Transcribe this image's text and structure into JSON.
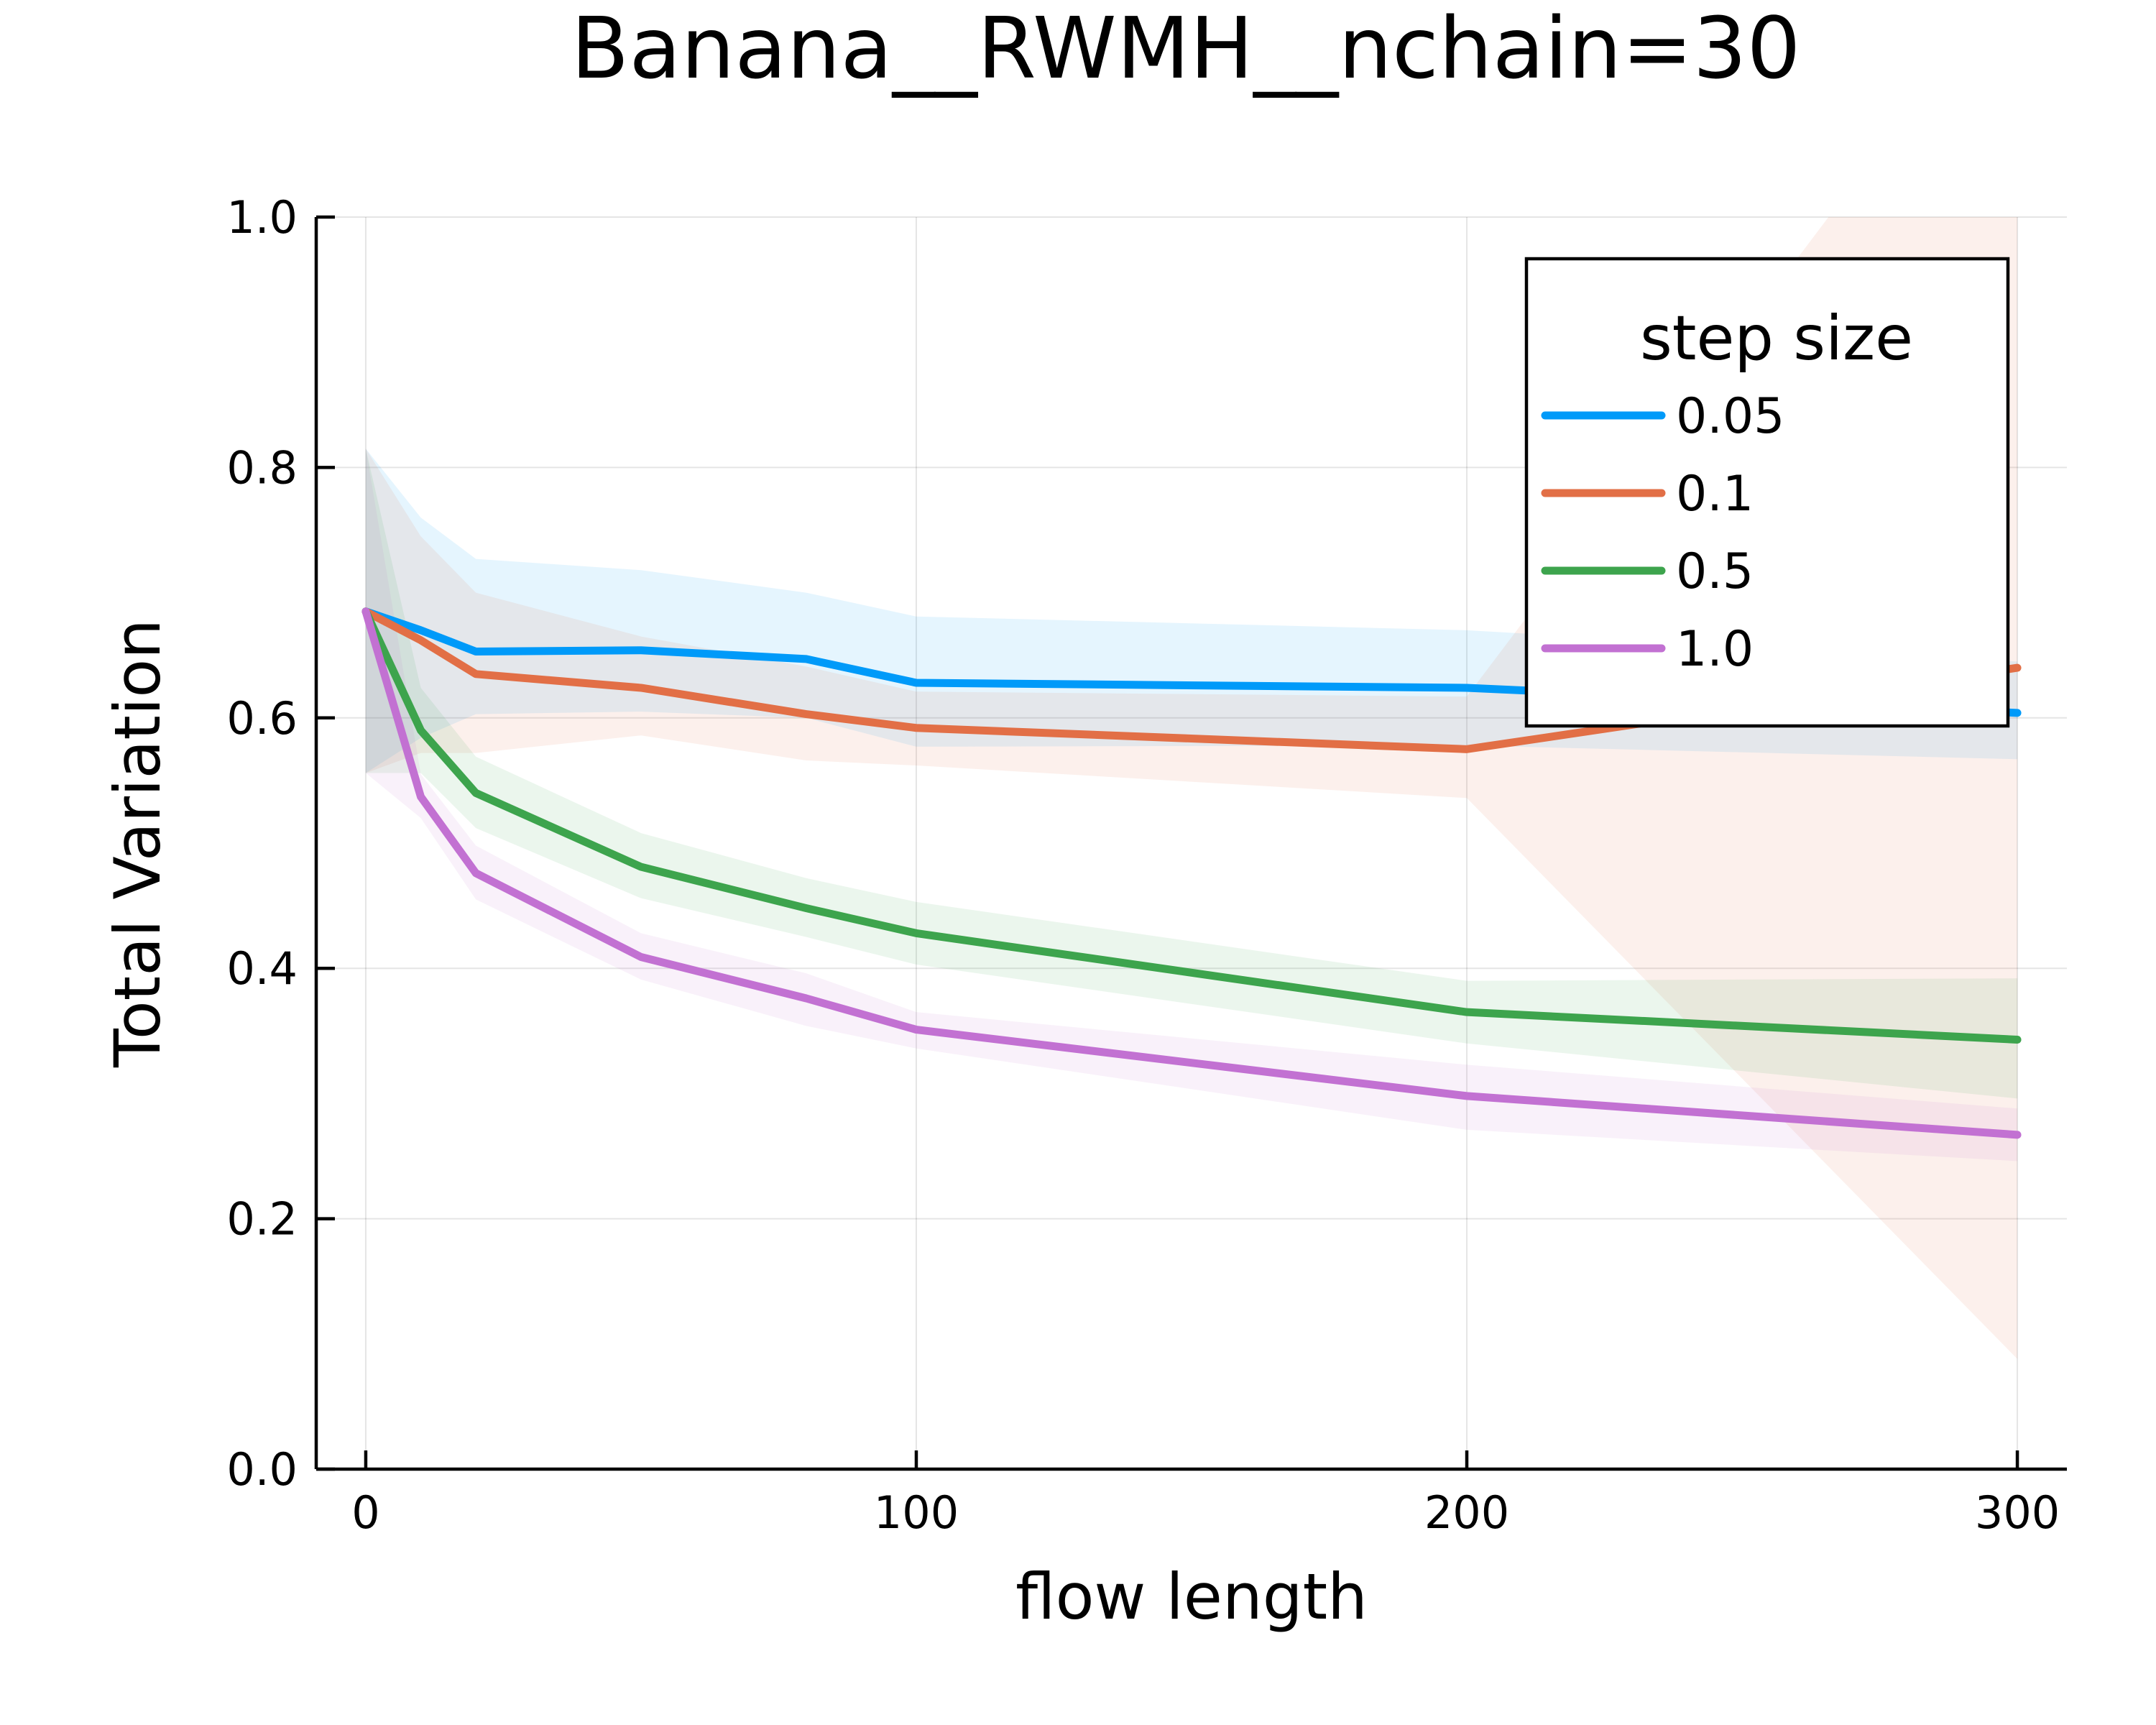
{
  "chart_data": {
    "type": "line",
    "title": "Banana__RWMH__nchain=30",
    "xlabel": "flow length",
    "ylabel": "Total Variation",
    "xlim": [
      -9,
      309
    ],
    "ylim": [
      0,
      1
    ],
    "xticks": [
      0,
      100,
      200,
      300
    ],
    "xtick_labels": [
      "0",
      "100",
      "200",
      "300"
    ],
    "yticks": [
      0,
      0.2,
      0.4,
      0.6,
      0.8,
      1.0
    ],
    "ytick_labels": [
      "0.0",
      "0.2",
      "0.4",
      "0.6",
      "0.8",
      "1.0"
    ],
    "grid": true,
    "legend": {
      "title": "step size",
      "placement": "top-right"
    },
    "x": [
      0,
      10,
      20,
      50,
      80,
      100,
      200,
      300
    ],
    "series": [
      {
        "name": "0.05",
        "color": "#009af9",
        "values": [
          0.685,
          0.67,
          0.653,
          0.654,
          0.647,
          0.628,
          0.624,
          0.604
        ],
        "lower": [
          0.556,
          0.584,
          0.603,
          0.605,
          0.6,
          0.577,
          0.578,
          0.567
        ],
        "upper": [
          0.815,
          0.76,
          0.727,
          0.718,
          0.7,
          0.681,
          0.67,
          0.645
        ]
      },
      {
        "name": "0.1",
        "color": "#e26f46",
        "values": [
          0.685,
          0.662,
          0.635,
          0.624,
          0.603,
          0.592,
          0.575,
          0.64
        ],
        "lower": [
          0.556,
          0.572,
          0.572,
          0.586,
          0.566,
          0.562,
          0.536,
          0.088
        ],
        "upper": [
          0.815,
          0.745,
          0.7,
          0.665,
          0.641,
          0.621,
          0.617,
          1.2
        ]
      },
      {
        "name": "0.5",
        "color": "#3da44d",
        "values": [
          0.685,
          0.59,
          0.54,
          0.481,
          0.448,
          0.428,
          0.365,
          0.343
        ],
        "lower": [
          0.556,
          0.556,
          0.512,
          0.456,
          0.425,
          0.403,
          0.34,
          0.296
        ],
        "upper": [
          0.815,
          0.624,
          0.569,
          0.508,
          0.472,
          0.453,
          0.39,
          0.392
        ]
      },
      {
        "name": "1.0",
        "color": "#c271d2",
        "values": [
          0.685,
          0.537,
          0.476,
          0.409,
          0.376,
          0.351,
          0.298,
          0.267
        ],
        "lower": [
          0.556,
          0.52,
          0.455,
          0.391,
          0.354,
          0.336,
          0.271,
          0.246
        ],
        "upper": [
          0.815,
          0.555,
          0.498,
          0.428,
          0.396,
          0.365,
          0.323,
          0.288
        ]
      }
    ]
  }
}
